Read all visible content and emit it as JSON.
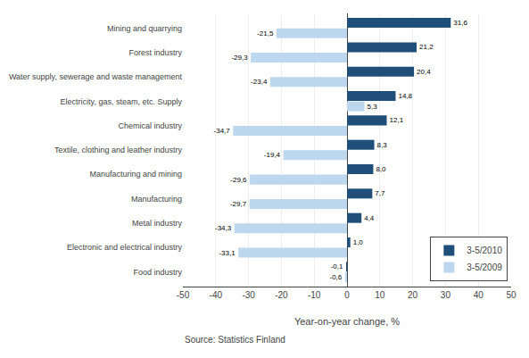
{
  "chart_data": {
    "type": "bar",
    "orientation": "horizontal",
    "categories": [
      "Food industry",
      "Electronic and electrical industry",
      "Metal industry",
      "Manufacturing",
      "Manufacturing and mining",
      "Textile, clothing and leather industry",
      "Chemical industry",
      "Electricity, gas, steam, etc. Supply",
      "Water supply, sewerage and waste management",
      "Forest industry",
      "Mining and quarrying"
    ],
    "series": [
      {
        "name": "3-5/2010",
        "color": "#1F4E79",
        "values": [
          -0.1,
          1.0,
          4.4,
          7.7,
          8.0,
          8.3,
          12.1,
          14.8,
          20.4,
          21.2,
          31.6
        ],
        "value_labels": [
          "-0,1",
          "1,0",
          "4,4",
          "7,7",
          "8,0",
          "8,3",
          "12,1",
          "14,8",
          "20,4",
          "21,2",
          "31,6"
        ]
      },
      {
        "name": "3-5/2009",
        "color": "#BDD7EE",
        "values": [
          -0.6,
          -33.1,
          -34.3,
          -29.7,
          -29.6,
          -19.4,
          -34.7,
          5.3,
          -23.4,
          -29.3,
          -21.5
        ],
        "value_labels": [
          "-0,6",
          "-33,1",
          "-34,3",
          "-29,7",
          "-29,6",
          "-19,4",
          "-34,7",
          "5,3",
          "-23,4",
          "-29,3",
          "-21,5"
        ]
      }
    ],
    "xlabel": "Year-on-year change, %",
    "annotations": [
      "Source: Statistics Finland"
    ],
    "xlim": [
      -50,
      50
    ],
    "xticks": [
      -50,
      -40,
      -30,
      -20,
      -10,
      0,
      10,
      20,
      30,
      40,
      50
    ],
    "grid": true,
    "legend": "lower right",
    "data_labels": true
  }
}
